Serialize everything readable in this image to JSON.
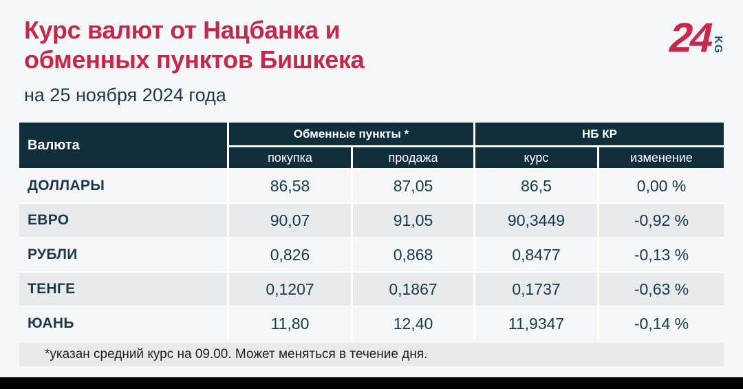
{
  "page": {
    "title_line1": "Курс валют от Нацбанка и",
    "title_line2": "обменных пунктов Бишкека",
    "subtitle": "на 25 ноября 2024 года",
    "footnote": "*указан средний курс на 09.00. Может меняться в течение дня."
  },
  "logo": {
    "number": "24",
    "suffix": "KG"
  },
  "colors": {
    "accent_red": "#C2294B",
    "header_bg": "#102E3C",
    "text_dark": "#16394A",
    "row_light": "#F5F6F8",
    "row_gray": "#E8EAEC",
    "page_bg": "#F4F6F8",
    "logo_kg_teal": "#1E5A75"
  },
  "table": {
    "col_currency": "Валюта",
    "group_exchange": "Обменные пункты *",
    "group_nbkr": "НБ КР",
    "sub_buy": "покупка",
    "sub_sell": "продажа",
    "sub_rate": "курс",
    "sub_change": "изменение",
    "rows": [
      {
        "currency": "ДОЛЛАРЫ",
        "buy": "86,58",
        "sell": "87,05",
        "rate": "86,5",
        "change": "0,00 %"
      },
      {
        "currency": "ЕВРО",
        "buy": "90,07",
        "sell": "91,05",
        "rate": "90,3449",
        "change": "-0,92 %"
      },
      {
        "currency": "РУБЛИ",
        "buy": "0,826",
        "sell": "0,868",
        "rate": "0,8477",
        "change": "-0,13 %"
      },
      {
        "currency": "ТЕНГЕ",
        "buy": "0,1207",
        "sell": "0,1867",
        "rate": "0,1737",
        "change": "-0,63 %"
      },
      {
        "currency": "ЮАНЬ",
        "buy": "11,80",
        "sell": "12,40",
        "rate": "11,9347",
        "change": "-0,14 %"
      }
    ]
  },
  "chart_data": {
    "type": "table",
    "title": "Курс валют от Нацбанка и обменных пунктов Бишкека",
    "subtitle": "на 25 ноября 2024 года",
    "column_groups": [
      "Обменные пункты *",
      "НБ КР"
    ],
    "columns": [
      "Валюта",
      "покупка",
      "продажа",
      "курс",
      "изменение"
    ],
    "rows": [
      [
        "ДОЛЛАРЫ",
        "86,58",
        "87,05",
        "86,5",
        "0,00 %"
      ],
      [
        "ЕВРО",
        "90,07",
        "91,05",
        "90,3449",
        "-0,92 %"
      ],
      [
        "РУБЛИ",
        "0,826",
        "0,868",
        "0,8477",
        "-0,13 %"
      ],
      [
        "ТЕНГЕ",
        "0,1207",
        "0,1867",
        "0,1737",
        "-0,63 %"
      ],
      [
        "ЮАНЬ",
        "11,80",
        "12,40",
        "11,9347",
        "-0,14 %"
      ]
    ],
    "footnote": "*указан средний курс на 09.00. Может меняться в течение дня."
  }
}
